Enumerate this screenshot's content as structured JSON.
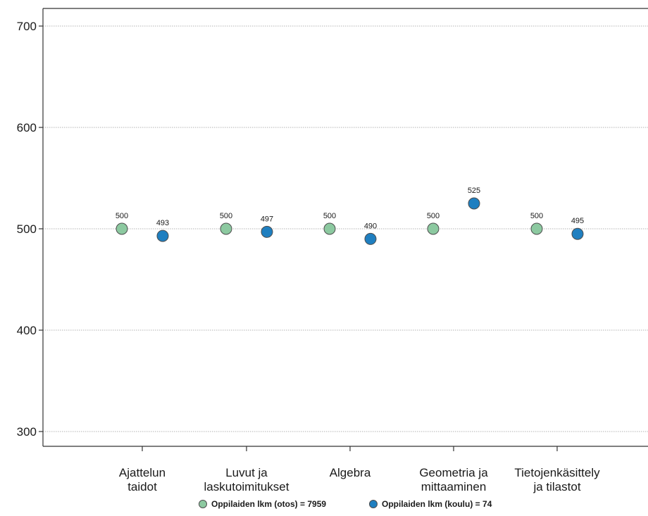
{
  "chart_data": {
    "type": "scatter",
    "categories": [
      [
        "Ajattelun",
        "taidot"
      ],
      [
        "Luvut ja",
        "laskutoimitukset"
      ],
      [
        "Algebra"
      ],
      [
        "Geometria ja",
        "mittaaminen"
      ],
      [
        "Tietojenkäsittely",
        "ja tilastot"
      ]
    ],
    "series": [
      {
        "name": "Oppilaiden lkm (otos) = 7959",
        "color": "#8cc9a0",
        "values": [
          500,
          500,
          500,
          500,
          500
        ],
        "labels": [
          "500",
          "500",
          "500",
          "500",
          "500"
        ]
      },
      {
        "name": "Oppilaiden lkm (koulu) = 74",
        "color": "#1f7fc0",
        "values": [
          493,
          497,
          490,
          525,
          495
        ],
        "labels": [
          "493",
          "497",
          "490",
          "525",
          "495"
        ]
      }
    ],
    "yticks": [
      "300",
      "400",
      "500",
      "600",
      "700"
    ],
    "ylim": [
      300,
      700
    ],
    "grid": true,
    "legend": "bottom"
  }
}
